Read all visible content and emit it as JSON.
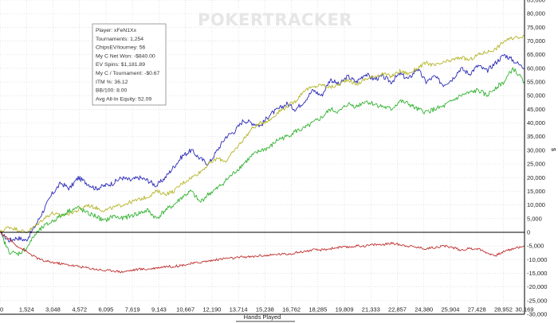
{
  "watermark": "POKERTRACKER",
  "stats_box": {
    "lines": [
      "Player: xFeN1Xx",
      "Tournaments: 1,254",
      "ChipsEV/tourney: 56",
      "My C Net Won: -$840.00",
      "EV Spins: $1,181.89",
      "My C / Tournament: -$0.67",
      "ITM %: 36.12",
      "BB/100: 8.00",
      "Avg All-In Equity: 52.09"
    ]
  },
  "chart_data": {
    "type": "line",
    "xlabel": "Hands Played",
    "ylabel": "$",
    "xlim": [
      0,
      30169
    ],
    "ylim": [
      -30000,
      85000
    ],
    "x_ticks": [
      0,
      1524,
      3048,
      4572,
      6095,
      7619,
      9143,
      10667,
      12190,
      13714,
      15238,
      16762,
      18285,
      19809,
      21333,
      22857,
      24380,
      25904,
      27428,
      28952,
      30169
    ],
    "x_tick_labels": [
      "0",
      "1,524",
      "3,048",
      "4,572",
      "6,095",
      "7,619",
      "9,143",
      "10,667",
      "12,190",
      "13,714",
      "15,238",
      "16,762",
      "18,285",
      "19,809",
      "21,333",
      "22,857",
      "24,380",
      "25,904",
      "27,428",
      "28,952",
      "30,169"
    ],
    "y_ticks": [
      -30000,
      -25000,
      -20000,
      -15000,
      -10000,
      -5000,
      0,
      5000,
      10000,
      15000,
      20000,
      25000,
      30000,
      35000,
      40000,
      45000,
      50000,
      55000,
      60000,
      65000,
      70000,
      75000,
      80000,
      85000
    ],
    "y_tick_labels": [
      "-30,000",
      "-25,000",
      "-20,000",
      "-15,000",
      "-10,000",
      "-5,000",
      "0",
      "5,000",
      "10,000",
      "15,000",
      "20,000",
      "25,000",
      "30,000",
      "35,000",
      "40,000",
      "45,000",
      "50,000",
      "55,000",
      "60,000",
      "65,000",
      "70,000",
      "75,000",
      "80,000",
      "85,000"
    ],
    "grid": true,
    "colors": [
      "#2b2bb8",
      "#b5b52a",
      "#33b233",
      "#c03030"
    ],
    "series": [
      {
        "x": [
          0,
          500,
          1000,
          1500,
          2000,
          2500,
          3000,
          3500,
          4000,
          4500,
          5000,
          5500,
          6000,
          6500,
          7000,
          7500,
          8000,
          8500,
          9000,
          9500,
          10000,
          10500,
          11000,
          11500,
          12000,
          12500,
          13000,
          13500,
          14000,
          14500,
          15000,
          15500,
          16000,
          16500,
          17000,
          17500,
          18000,
          18500,
          19000,
          19500,
          20000,
          20500,
          21000,
          21500,
          22000,
          22500,
          23000,
          23500,
          24000,
          24500,
          25000,
          25500,
          26000,
          26500,
          27000,
          27500,
          28000,
          28500,
          29000,
          29500,
          30169
        ],
        "values": [
          0,
          -3000,
          -2000,
          -3000,
          2000,
          8000,
          14000,
          18000,
          16000,
          20000,
          18000,
          16000,
          17000,
          18000,
          20000,
          19000,
          20000,
          19000,
          17000,
          20000,
          24000,
          28000,
          30000,
          27000,
          25000,
          30000,
          35000,
          37000,
          41000,
          40000,
          39000,
          43000,
          45000,
          47000,
          45000,
          48000,
          52000,
          50000,
          56000,
          54000,
          57000,
          55000,
          58000,
          56000,
          57000,
          55000,
          58000,
          56000,
          60000,
          55000,
          57000,
          54000,
          56000,
          60000,
          58000,
          61000,
          59000,
          62000,
          65000,
          63000,
          60000
        ]
      },
      {
        "x": [
          0,
          500,
          1000,
          1500,
          2000,
          2500,
          3000,
          3500,
          4000,
          4500,
          5000,
          5500,
          6000,
          6500,
          7000,
          7500,
          8000,
          8500,
          9000,
          9500,
          10000,
          10500,
          11000,
          11500,
          12000,
          12500,
          13000,
          13500,
          14000,
          14500,
          15000,
          15500,
          16000,
          16500,
          17000,
          17500,
          18000,
          18500,
          19000,
          19500,
          20000,
          20500,
          21000,
          21500,
          22000,
          22500,
          23000,
          23500,
          24000,
          24500,
          25000,
          25500,
          26000,
          26500,
          27000,
          27500,
          28000,
          28500,
          29000,
          29500,
          30169
        ],
        "values": [
          0,
          2000,
          1000,
          0,
          2000,
          5000,
          7000,
          6000,
          7000,
          8000,
          10000,
          9000,
          8000,
          9000,
          10000,
          11000,
          12000,
          13000,
          15000,
          14000,
          15000,
          18000,
          20000,
          22000,
          25000,
          27000,
          26000,
          30000,
          34000,
          38000,
          40000,
          41000,
          44000,
          46000,
          48000,
          52000,
          53000,
          54000,
          53000,
          54000,
          56000,
          54000,
          56000,
          57000,
          58000,
          57000,
          59000,
          58000,
          60000,
          62000,
          61000,
          62000,
          63000,
          64000,
          63000,
          65000,
          66000,
          67000,
          70000,
          71000,
          72000
        ]
      },
      {
        "x": [
          0,
          500,
          1000,
          1500,
          2000,
          2500,
          3000,
          3500,
          4000,
          4500,
          5000,
          5500,
          6000,
          6500,
          7000,
          7500,
          8000,
          8500,
          9000,
          9500,
          10000,
          10500,
          11000,
          11500,
          12000,
          12500,
          13000,
          13500,
          14000,
          14500,
          15000,
          15500,
          16000,
          16500,
          17000,
          17500,
          18000,
          18500,
          19000,
          19500,
          20000,
          20500,
          21000,
          21500,
          22000,
          22500,
          23000,
          23500,
          24000,
          24500,
          25000,
          25500,
          26000,
          26500,
          27000,
          27500,
          28000,
          28500,
          29000,
          29500,
          30169
        ],
        "values": [
          0,
          -7000,
          -8000,
          -6000,
          -1000,
          2000,
          4000,
          6000,
          8000,
          9000,
          7000,
          6000,
          4000,
          6000,
          5000,
          6000,
          7000,
          8000,
          5000,
          8000,
          10000,
          13000,
          15000,
          11000,
          14000,
          16000,
          19000,
          22000,
          25000,
          28000,
          30000,
          31000,
          34000,
          35000,
          37000,
          38000,
          40000,
          42000,
          45000,
          44000,
          47000,
          46000,
          48000,
          47000,
          46000,
          45000,
          48000,
          47000,
          45000,
          44000,
          45000,
          46000,
          48000,
          50000,
          51000,
          52000,
          50000,
          53000,
          55000,
          60000,
          55000
        ]
      },
      {
        "x": [
          0,
          500,
          1000,
          1500,
          2000,
          2500,
          3000,
          3500,
          4000,
          4500,
          5000,
          5500,
          6000,
          6500,
          7000,
          7500,
          8000,
          8500,
          9000,
          9500,
          10000,
          10500,
          11000,
          11500,
          12000,
          12500,
          13000,
          13500,
          14000,
          14500,
          15000,
          15500,
          16000,
          16500,
          17000,
          17500,
          18000,
          18500,
          19000,
          19500,
          20000,
          20500,
          21000,
          21500,
          22000,
          22500,
          23000,
          23500,
          24000,
          24500,
          25000,
          25500,
          26000,
          26500,
          27000,
          27500,
          28000,
          28500,
          29000,
          29500,
          30169
        ],
        "values": [
          0,
          -2500,
          -5000,
          -7000,
          -9000,
          -10500,
          -11000,
          -11500,
          -12000,
          -12500,
          -13000,
          -13500,
          -14000,
          -14000,
          -14500,
          -14000,
          -13500,
          -13500,
          -13000,
          -12500,
          -12500,
          -12000,
          -11500,
          -11000,
          -10500,
          -10000,
          -9500,
          -9500,
          -9000,
          -9000,
          -8500,
          -8500,
          -8000,
          -8000,
          -7500,
          -7000,
          -6500,
          -6500,
          -6000,
          -5500,
          -5500,
          -5000,
          -5000,
          -4500,
          -4500,
          -4000,
          -4500,
          -5000,
          -5500,
          -6000,
          -5500,
          -5000,
          -5500,
          -6500,
          -6000,
          -6000,
          -7500,
          -8500,
          -7000,
          -6000,
          -5000
        ]
      }
    ]
  }
}
